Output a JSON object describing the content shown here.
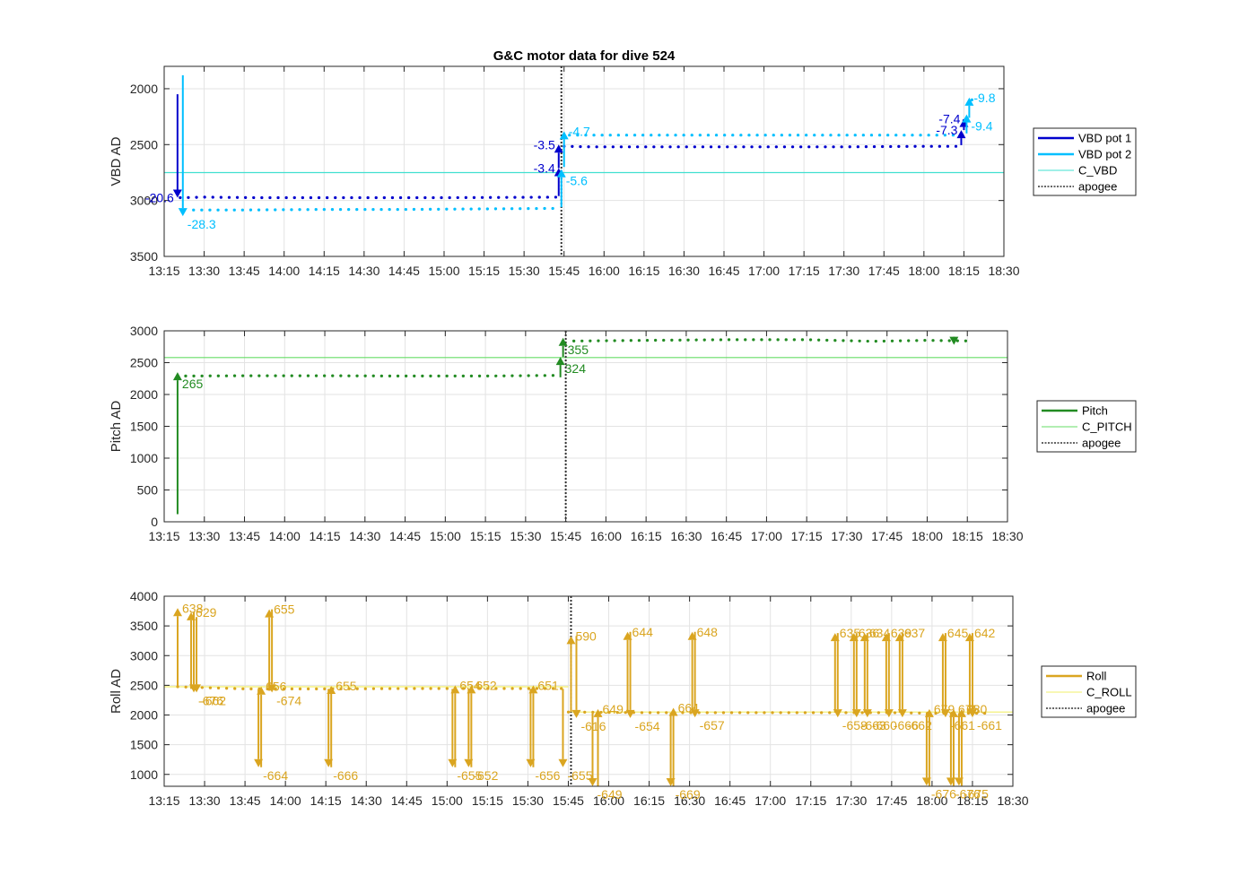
{
  "title": "G&C motor data for dive 524",
  "colors": {
    "vbd1": "#0000cd",
    "vbd2": "#00bfff",
    "c_vbd": "#40e0d0",
    "pitch": "#228b22",
    "c_pitch": "#66dd66",
    "roll": "#daa520",
    "c_roll": "#f2ef6a",
    "apogee": "#333333"
  },
  "x_ticks": [
    "13:15",
    "13:30",
    "13:45",
    "14:00",
    "14:15",
    "14:30",
    "14:45",
    "15:00",
    "15:15",
    "15:30",
    "15:45",
    "16:00",
    "16:15",
    "16:30",
    "16:45",
    "17:00",
    "17:15",
    "17:30",
    "17:45",
    "18:00",
    "18:15",
    "18:30"
  ],
  "chart_data": [
    {
      "type": "scatter",
      "name": "vbd",
      "title": "G&C motor data for dive 524",
      "ylabel": "VBD AD",
      "xlim": [
        "13:15",
        "18:30"
      ],
      "ylim": [
        3500,
        1800
      ],
      "yticks": [
        2000,
        2500,
        3000,
        3500
      ],
      "grid": true,
      "legend_placement": "outside-right",
      "legend": [
        {
          "label": "VBD pot 1",
          "color_key": "vbd1",
          "style": "thick"
        },
        {
          "label": "VBD pot 2",
          "color_key": "vbd2",
          "style": "thick"
        },
        {
          "label": "C_VBD",
          "color_key": "c_vbd",
          "style": "thin"
        },
        {
          "label": "apogee",
          "color_key": "apogee",
          "style": "dotted"
        }
      ],
      "hlines": [
        {
          "y": 2750,
          "color_key": "c_vbd"
        }
      ],
      "apogee": "15:44",
      "series": [
        {
          "color_key": "vbd1",
          "segments": [
            {
              "x": [
                "13:21",
                "13:30",
                "13:50",
                "14:30",
                "15:00",
                "15:43"
              ],
              "y": [
                2975,
                2970,
                2975,
                2975,
                2975,
                2970
              ]
            },
            {
              "x": [
                "15:45",
                "15:55",
                "16:30",
                "17:00",
                "17:30",
                "18:00",
                "18:12"
              ],
              "y": [
                2515,
                2520,
                2520,
                2520,
                2520,
                2515,
                2515
              ]
            },
            {
              "x": [
                "18:15",
                "18:18"
              ],
              "y": [
                2285,
                2285
              ]
            }
          ]
        },
        {
          "color_key": "vbd2",
          "segments": [
            {
              "x": [
                "13:26",
                "13:45",
                "14:15",
                "14:45",
                "15:15",
                "15:43"
              ],
              "y": [
                3085,
                3085,
                3080,
                3080,
                3075,
                3070
              ]
            },
            {
              "x": [
                "15:47",
                "16:00",
                "16:30",
                "17:00",
                "17:30",
                "18:00",
                "18:14"
              ],
              "y": [
                2415,
                2415,
                2415,
                2415,
                2415,
                2415,
                2415
              ]
            },
            {
              "x": [
                "18:18",
                "18:20"
              ],
              "y": [
                2100,
                2100
              ]
            }
          ]
        }
      ],
      "arrows": [
        {
          "x": "13:20",
          "from": 2050,
          "to": 2975,
          "color_key": "vbd1",
          "label": "-20.6",
          "lpos": "left"
        },
        {
          "x": "13:22",
          "from": 1880,
          "to": 3140,
          "color_key": "vbd2",
          "label": "-28.3",
          "lpos": "below-right"
        },
        {
          "x": "15:43",
          "from": 2960,
          "to": 2710,
          "color_key": "vbd1",
          "label": "-3.4",
          "lpos": "left"
        },
        {
          "x": "15:43",
          "from": 2710,
          "to": 2500,
          "color_key": "vbd1",
          "label": "-3.5",
          "lpos": "left"
        },
        {
          "x": "15:44",
          "from": 3060,
          "to": 2720,
          "color_key": "vbd2",
          "label": "-5.6",
          "lpos": "below-right"
        },
        {
          "x": "15:45",
          "from": 2700,
          "to": 2380,
          "color_key": "vbd2",
          "label": "-4.7",
          "lpos": "right"
        },
        {
          "x": "18:14",
          "from": 2505,
          "to": 2370,
          "color_key": "vbd1",
          "label": "-7.3",
          "lpos": "left"
        },
        {
          "x": "18:15",
          "from": 2370,
          "to": 2270,
          "color_key": "vbd1",
          "label": "-7.4",
          "lpos": "left"
        },
        {
          "x": "18:16",
          "from": 2400,
          "to": 2230,
          "color_key": "vbd2",
          "label": "-9.4",
          "lpos": "below-right"
        },
        {
          "x": "18:17",
          "from": 2260,
          "to": 2080,
          "color_key": "vbd2",
          "label": "-9.8",
          "lpos": "right"
        }
      ]
    },
    {
      "type": "scatter",
      "name": "pitch",
      "title": "",
      "ylabel": "Pitch AD",
      "xlim": [
        "13:15",
        "18:30"
      ],
      "ylim": [
        0,
        3000
      ],
      "yticks": [
        0,
        500,
        1000,
        1500,
        2000,
        2500,
        3000
      ],
      "grid": true,
      "legend_placement": "outside-right",
      "legend": [
        {
          "label": "Pitch",
          "color_key": "pitch",
          "style": "thick"
        },
        {
          "label": "C_PITCH",
          "color_key": "c_pitch",
          "style": "thin"
        },
        {
          "label": "apogee",
          "color_key": "apogee",
          "style": "dotted"
        }
      ],
      "hlines": [
        {
          "y": 2580,
          "color_key": "c_pitch"
        }
      ],
      "apogee": "15:45",
      "series": [
        {
          "color_key": "pitch",
          "segments": [
            {
              "x": [
                "13:23",
                "13:45",
                "14:15",
                "14:45",
                "15:15",
                "15:42"
              ],
              "y": [
                2290,
                2295,
                2295,
                2290,
                2290,
                2300
              ]
            },
            {
              "x": [
                "15:48",
                "16:15",
                "16:45",
                "17:15",
                "17:40",
                "18:00",
                "18:17"
              ],
              "y": [
                2840,
                2850,
                2860,
                2860,
                2835,
                2850,
                2840
              ]
            }
          ]
        }
      ],
      "arrows": [
        {
          "x": "13:20",
          "from": 120,
          "to": 2350,
          "color_key": "pitch",
          "label": "265",
          "lpos": "below-right"
        },
        {
          "x": "15:43",
          "from": 2270,
          "to": 2590,
          "color_key": "pitch",
          "label": "324",
          "lpos": "below-right"
        },
        {
          "x": "15:44",
          "from": 2590,
          "to": 2890,
          "color_key": "pitch",
          "label": "355",
          "lpos": "below-right"
        },
        {
          "x": "18:10",
          "from": 2860,
          "to": 2780,
          "color_key": "pitch",
          "label": "",
          "lpos": "none"
        }
      ]
    },
    {
      "type": "scatter",
      "name": "roll",
      "title": "",
      "ylabel": "Roll AD",
      "xlim": [
        "13:15",
        "18:30"
      ],
      "ylim": [
        800,
        4000
      ],
      "yticks": [
        1000,
        1500,
        2000,
        2500,
        3000,
        3500,
        4000
      ],
      "grid": true,
      "legend_placement": "outside-right",
      "legend": [
        {
          "label": "Roll",
          "color_key": "roll",
          "style": "thick"
        },
        {
          "label": "C_ROLL",
          "color_key": "c_roll",
          "style": "thin"
        },
        {
          "label": "apogee",
          "color_key": "apogee",
          "style": "dotted"
        }
      ],
      "hlines": [
        {
          "y": 2475,
          "color_key": "c_roll",
          "x0": "13:15",
          "x1": "15:45"
        },
        {
          "y": 2050,
          "color_key": "c_roll",
          "x0": "15:45",
          "x1": "18:30"
        }
      ],
      "apogee": "15:46",
      "series": [
        {
          "color_key": "roll",
          "segments": [
            {
              "x": [
                "13:20",
                "13:45",
                "14:15",
                "14:45",
                "15:15",
                "15:45"
              ],
              "y": [
                2475,
                2440,
                2440,
                2445,
                2445,
                2445
              ]
            },
            {
              "x": [
                "15:45",
                "16:15",
                "16:45",
                "17:15",
                "17:45",
                "18:00",
                "18:20"
              ],
              "y": [
                2050,
                2040,
                2040,
                2040,
                2040,
                2030,
                2030
              ]
            }
          ]
        }
      ],
      "arrows": [
        {
          "x": "13:20",
          "from": 2475,
          "to": 3800,
          "color_key": "roll",
          "label": "638",
          "lpos": "right"
        },
        {
          "x": "13:25",
          "from": 2440,
          "to": 3730,
          "color_key": "roll",
          "label": "629",
          "lpos": "right"
        },
        {
          "x": "13:26",
          "from": 3730,
          "to": 2380,
          "color_key": "roll",
          "label": "-676",
          "lpos": "below-right"
        },
        {
          "x": "13:27",
          "from": 3650,
          "to": 2380,
          "color_key": "roll",
          "label": "-662",
          "lpos": "below-right"
        },
        {
          "x": "13:50",
          "from": 2430,
          "to": 1120,
          "color_key": "roll",
          "label": "-664",
          "lpos": "below-right"
        },
        {
          "x": "13:51",
          "from": 1120,
          "to": 2480,
          "color_key": "roll",
          "label": "656",
          "lpos": "right"
        },
        {
          "x": "13:54",
          "from": 2420,
          "to": 3780,
          "color_key": "roll",
          "label": "655",
          "lpos": "right"
        },
        {
          "x": "13:55",
          "from": 3780,
          "to": 2380,
          "color_key": "roll",
          "label": "-674",
          "lpos": "below-right"
        },
        {
          "x": "14:16",
          "from": 2440,
          "to": 1120,
          "color_key": "roll",
          "label": "-666",
          "lpos": "below-right"
        },
        {
          "x": "14:17",
          "from": 1120,
          "to": 2490,
          "color_key": "roll",
          "label": "655",
          "lpos": "right"
        },
        {
          "x": "15:02",
          "from": 2440,
          "to": 1120,
          "color_key": "roll",
          "label": "-655",
          "lpos": "below-right"
        },
        {
          "x": "15:03",
          "from": 1120,
          "to": 2500,
          "color_key": "roll",
          "label": "654",
          "lpos": "right"
        },
        {
          "x": "15:08",
          "from": 2440,
          "to": 1120,
          "color_key": "roll",
          "label": "-652",
          "lpos": "below-right"
        },
        {
          "x": "15:09",
          "from": 1120,
          "to": 2500,
          "color_key": "roll",
          "label": "652",
          "lpos": "right"
        },
        {
          "x": "15:31",
          "from": 2440,
          "to": 1120,
          "color_key": "roll",
          "label": "-656",
          "lpos": "below-right"
        },
        {
          "x": "15:32",
          "from": 1120,
          "to": 2500,
          "color_key": "roll",
          "label": "651",
          "lpos": "right"
        },
        {
          "x": "15:43",
          "from": 2440,
          "to": 1120,
          "color_key": "roll",
          "label": "-655",
          "lpos": "below-right"
        },
        {
          "x": "15:46",
          "from": 2050,
          "to": 3330,
          "color_key": "roll",
          "label": "590",
          "lpos": "right"
        },
        {
          "x": "15:48",
          "from": 3330,
          "to": 1950,
          "color_key": "roll",
          "label": "-616",
          "lpos": "below-right"
        },
        {
          "x": "15:54",
          "from": 2040,
          "to": 800,
          "color_key": "roll",
          "label": "-649",
          "lpos": "below-right"
        },
        {
          "x": "15:56",
          "from": 800,
          "to": 2100,
          "color_key": "roll",
          "label": "649",
          "lpos": "right"
        },
        {
          "x": "16:07",
          "from": 2040,
          "to": 3400,
          "color_key": "roll",
          "label": "644",
          "lpos": "right"
        },
        {
          "x": "16:08",
          "from": 3400,
          "to": 1950,
          "color_key": "roll",
          "label": "-654",
          "lpos": "below-right"
        },
        {
          "x": "16:23",
          "from": 2040,
          "to": 800,
          "color_key": "roll",
          "label": "-669",
          "lpos": "below-right"
        },
        {
          "x": "16:24",
          "from": 800,
          "to": 2120,
          "color_key": "roll",
          "label": "664",
          "lpos": "right"
        },
        {
          "x": "16:31",
          "from": 2040,
          "to": 3400,
          "color_key": "roll",
          "label": "648",
          "lpos": "right"
        },
        {
          "x": "16:32",
          "from": 3400,
          "to": 1960,
          "color_key": "roll",
          "label": "-657",
          "lpos": "below-right"
        },
        {
          "x": "17:24",
          "from": 2040,
          "to": 3380,
          "color_key": "roll",
          "label": "635",
          "lpos": "right"
        },
        {
          "x": "17:25",
          "from": 3380,
          "to": 1960,
          "color_key": "roll",
          "label": "-658",
          "lpos": "below-right"
        },
        {
          "x": "17:31",
          "from": 2040,
          "to": 3380,
          "color_key": "roll",
          "label": "636",
          "lpos": "right"
        },
        {
          "x": "17:32",
          "from": 3380,
          "to": 1960,
          "color_key": "roll",
          "label": "-663",
          "lpos": "below-right"
        },
        {
          "x": "17:35",
          "from": 2040,
          "to": 3380,
          "color_key": "roll",
          "label": "634",
          "lpos": "right"
        },
        {
          "x": "17:36",
          "from": 3380,
          "to": 1960,
          "color_key": "roll",
          "label": "-660",
          "lpos": "below-right"
        },
        {
          "x": "17:43",
          "from": 2040,
          "to": 3380,
          "color_key": "roll",
          "label": "639",
          "lpos": "right"
        },
        {
          "x": "17:44",
          "from": 3380,
          "to": 1960,
          "color_key": "roll",
          "label": "-666",
          "lpos": "below-right"
        },
        {
          "x": "17:48",
          "from": 2040,
          "to": 3380,
          "color_key": "roll",
          "label": "637",
          "lpos": "right"
        },
        {
          "x": "17:49",
          "from": 3380,
          "to": 1960,
          "color_key": "roll",
          "label": "-662",
          "lpos": "below-right"
        },
        {
          "x": "17:58",
          "from": 2040,
          "to": 810,
          "color_key": "roll",
          "label": "-676",
          "lpos": "below-right"
        },
        {
          "x": "17:59",
          "from": 810,
          "to": 2100,
          "color_key": "roll",
          "label": "679",
          "lpos": "right"
        },
        {
          "x": "18:04",
          "from": 2030,
          "to": 3380,
          "color_key": "roll",
          "label": "645",
          "lpos": "right"
        },
        {
          "x": "18:05",
          "from": 3380,
          "to": 1960,
          "color_key": "roll",
          "label": "-661",
          "lpos": "below-right"
        },
        {
          "x": "18:07",
          "from": 2030,
          "to": 810,
          "color_key": "roll",
          "label": "-676",
          "lpos": "below-right"
        },
        {
          "x": "18:08",
          "from": 810,
          "to": 2100,
          "color_key": "roll",
          "label": "675",
          "lpos": "right"
        },
        {
          "x": "18:10",
          "from": 2030,
          "to": 810,
          "color_key": "roll",
          "label": "-675",
          "lpos": "below-right"
        },
        {
          "x": "18:11",
          "from": 810,
          "to": 2100,
          "color_key": "roll",
          "label": "680",
          "lpos": "right"
        },
        {
          "x": "18:14",
          "from": 2030,
          "to": 3380,
          "color_key": "roll",
          "label": "642",
          "lpos": "right"
        },
        {
          "x": "18:15",
          "from": 3380,
          "to": 1960,
          "color_key": "roll",
          "label": "-661",
          "lpos": "below-right"
        }
      ]
    }
  ]
}
